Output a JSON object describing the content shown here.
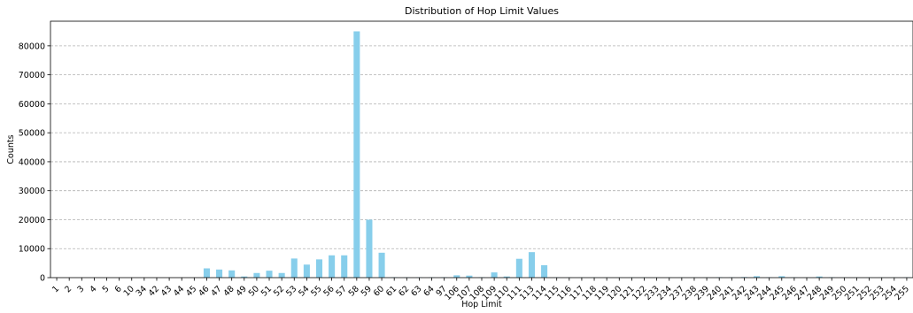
{
  "chart_data": {
    "type": "bar",
    "title": "Distribution of Hop Limit Values",
    "xlabel": "Hop Limit",
    "ylabel": "Counts",
    "ylim": [
      0,
      88500
    ],
    "yticks": [
      0,
      10000,
      20000,
      30000,
      40000,
      50000,
      60000,
      70000,
      80000
    ],
    "ytick_labels": [
      "0",
      "10000",
      "20000",
      "30000",
      "40000",
      "50000",
      "60000",
      "70000",
      "80000"
    ],
    "grid": "y-dashed",
    "bar_color": "#87ceeb",
    "categories": [
      "1",
      "2",
      "3",
      "4",
      "5",
      "6",
      "10",
      "34",
      "42",
      "43",
      "44",
      "45",
      "46",
      "47",
      "48",
      "49",
      "50",
      "51",
      "52",
      "53",
      "54",
      "55",
      "56",
      "57",
      "58",
      "59",
      "60",
      "61",
      "62",
      "63",
      "64",
      "97",
      "106",
      "107",
      "108",
      "109",
      "110",
      "111",
      "113",
      "114",
      "115",
      "116",
      "117",
      "118",
      "119",
      "120",
      "121",
      "122",
      "233",
      "234",
      "237",
      "238",
      "239",
      "240",
      "241",
      "242",
      "243",
      "244",
      "245",
      "246",
      "247",
      "248",
      "249",
      "250",
      "251",
      "252",
      "253",
      "254",
      "255"
    ],
    "values": [
      0,
      0,
      0,
      0,
      0,
      0,
      0,
      0,
      0,
      0,
      0,
      0,
      3200,
      2800,
      2500,
      400,
      1600,
      2400,
      1600,
      6600,
      4500,
      6300,
      7700,
      7700,
      85000,
      20000,
      8600,
      150,
      100,
      100,
      100,
      150,
      800,
      700,
      150,
      1800,
      400,
      6500,
      8800,
      4300,
      100,
      50,
      50,
      50,
      50,
      50,
      50,
      50,
      50,
      50,
      50,
      50,
      50,
      150,
      100,
      200,
      500,
      100,
      500,
      100,
      50,
      400,
      150,
      50,
      50,
      50,
      50,
      50,
      100
    ]
  }
}
